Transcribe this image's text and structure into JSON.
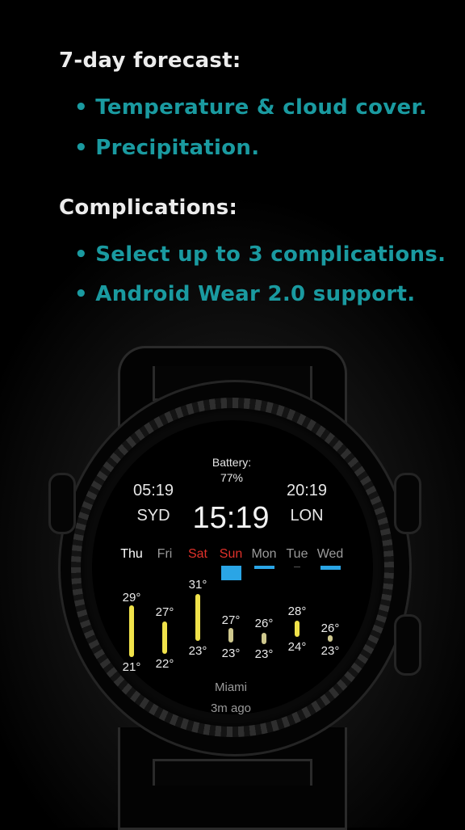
{
  "promo": {
    "forecast_heading": "7-day forecast:",
    "forecast_bullets": [
      "• Temperature & cloud cover.",
      "• Precipitation."
    ],
    "complications_heading": "Complications:",
    "complications_bullets": [
      "• Select up to 3 complications.",
      "• Android Wear 2.0 support."
    ]
  },
  "watch": {
    "battery_label": "Battery:",
    "battery_value": "77%",
    "left_city_time": "05:19",
    "left_city": "SYD",
    "main_time": "15:19",
    "right_city_time": "20:19",
    "right_city": "LON",
    "days": [
      {
        "name": "Thu",
        "high": "29°",
        "low": "21°"
      },
      {
        "name": "Fri",
        "high": "27°",
        "low": "22°"
      },
      {
        "name": "Sat",
        "high": "31°",
        "low": "23°"
      },
      {
        "name": "Sun",
        "high": "27°",
        "low": "23°"
      },
      {
        "name": "Mon",
        "high": "26°",
        "low": "23°"
      },
      {
        "name": "Tue",
        "high": "28°",
        "low": "24°"
      },
      {
        "name": "Wed",
        "high": "26°",
        "low": "23°"
      }
    ],
    "location": "Miami",
    "updated": "3m ago"
  },
  "colors": {
    "accent_teal": "#1a9aa0",
    "weekend_red": "#e0312a",
    "precip_blue": "#2aa5e6",
    "temp_yellow": "#f0e24a"
  }
}
